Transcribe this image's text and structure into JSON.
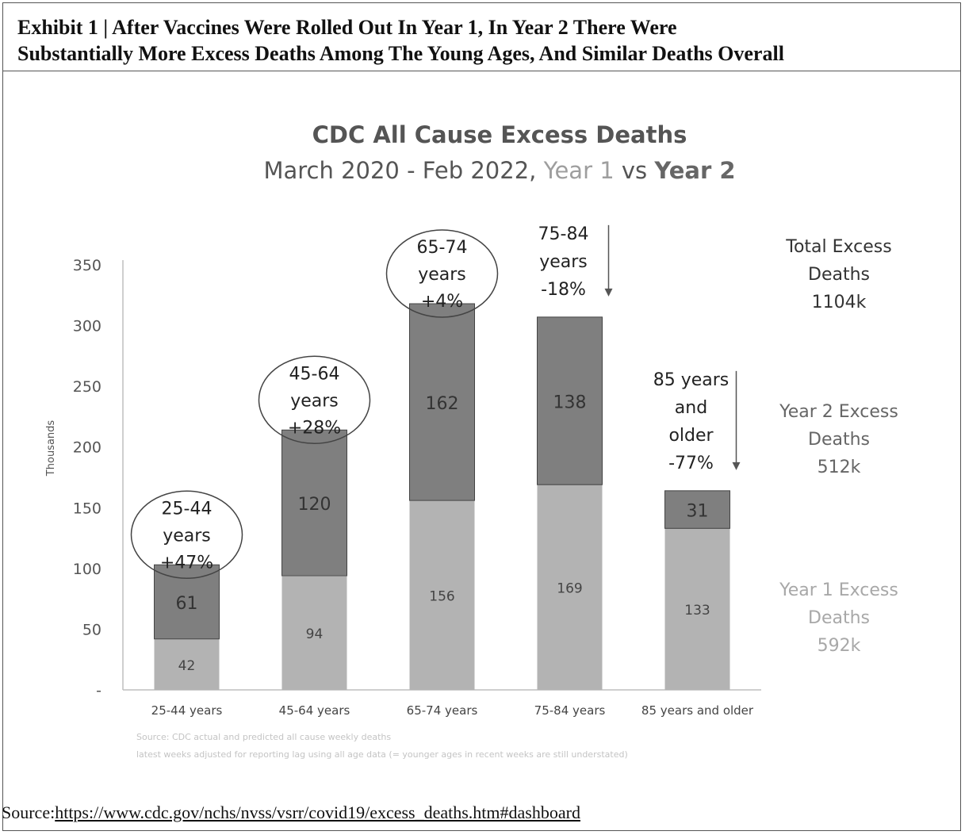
{
  "exhibit": {
    "line1": "Exhibit 1 | After Vaccines Were Rolled Out In Year 1, In Year 2 There Were",
    "line2": "Substantially More Excess Deaths Among The Young Ages, And Similar Deaths Overall"
  },
  "source": {
    "prefix": "Source:",
    "url": "https://www.cdc.gov/nchs/nvss/vsrr/covid19/excess_deaths.htm#dashboard"
  },
  "chart_data": {
    "type": "bar",
    "stacked": true,
    "title": "CDC All Cause Excess Deaths",
    "subtitle": {
      "prefix": "March 2020 - Feb 2022, ",
      "year1": "Year 1",
      "middle": " vs ",
      "year2": "Year 2"
    },
    "ylabel": "Thousands",
    "ylim": [
      0,
      350
    ],
    "yticks": [
      0,
      50,
      100,
      150,
      200,
      250,
      300,
      350
    ],
    "ytick_labels": [
      "-",
      "50",
      "100",
      "150",
      "200",
      "250",
      "300",
      "350"
    ],
    "categories": [
      "25-44 years",
      "45-64 years",
      "65-74 years",
      "75-84 years",
      "85 years and older"
    ],
    "series": [
      {
        "name": "Year 1 Excess Deaths",
        "values": [
          42,
          94,
          156,
          169,
          133
        ],
        "color": "#b3b3b3"
      },
      {
        "name": "Year 2 Excess Deaths",
        "values": [
          61,
          120,
          162,
          138,
          31
        ],
        "color": "#7f7f7f"
      }
    ],
    "annotations": [
      {
        "category": "25-44 years",
        "lines": [
          "25-44",
          "years",
          "+47%"
        ],
        "style": "circle"
      },
      {
        "category": "45-64 years",
        "lines": [
          "45-64",
          "years",
          "+28%"
        ],
        "style": "circle"
      },
      {
        "category": "65-74 years",
        "lines": [
          "65-74",
          "years",
          "+4%"
        ],
        "style": "circle"
      },
      {
        "category": "75-84 years",
        "lines": [
          "75-84",
          "years",
          "-18%"
        ],
        "style": "arrow"
      },
      {
        "category": "85 years and older",
        "lines": [
          "85 years",
          "and",
          "older",
          "-77%"
        ],
        "style": "arrow"
      }
    ],
    "side_labels": {
      "total": [
        "Total Excess",
        "Deaths",
        "1104k"
      ],
      "year2": [
        "Year 2 Excess",
        "Deaths",
        "512k"
      ],
      "year1": [
        "Year 1 Excess",
        "Deaths",
        "592k"
      ]
    },
    "footnote": [
      "Source: CDC actual and predicted all cause weekly deaths",
      "latest weeks adjusted for reporting lag using all age data (= younger ages in recent weeks are still understated)"
    ],
    "colors": {
      "year1": "#b3b3b3",
      "year2": "#7f7f7f",
      "text": "#3a3a3a",
      "axis": "#bfbfbf"
    }
  }
}
